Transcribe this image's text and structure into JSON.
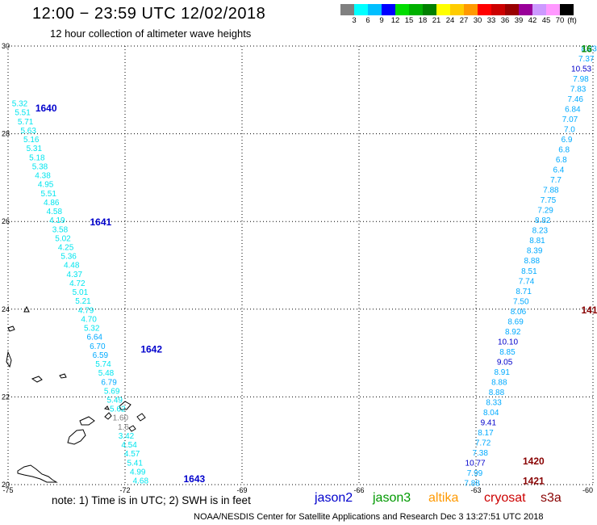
{
  "header": {
    "title": "12:00 − 23:59 UTC 12/02/2018",
    "subtitle": "12 hour collection of altimeter wave heights"
  },
  "color_scale": {
    "labels": [
      "3",
      "6",
      "9",
      "12",
      "15",
      "18",
      "21",
      "24",
      "27",
      "30",
      "33",
      "36",
      "39",
      "42",
      "45",
      "70"
    ],
    "unit": "(ft)",
    "colors": [
      "#808080",
      "#00ffff",
      "#00bfff",
      "#0000ff",
      "#00dd00",
      "#00b000",
      "#008000",
      "#ffff00",
      "#ffcc00",
      "#ff9900",
      "#ff0000",
      "#cc0000",
      "#990000",
      "#990099",
      "#cc99ff",
      "#ff99ff",
      "#000000"
    ]
  },
  "footer": {
    "note": "note:  1) Time is in UTC;  2) SWH is in feet",
    "credit": "NOAA/NESDIS Center for Satellite Applications and Research    Dec  3 13:27:51 UTC 2018",
    "missions": [
      {
        "label": "jason2",
        "color": "#0000cc"
      },
      {
        "label": "jason3",
        "color": "#009900"
      },
      {
        "label": "altika",
        "color": "#ff9900"
      },
      {
        "label": "cryosat",
        "color": "#cc0000"
      },
      {
        "label": "s3a",
        "color": "#880000"
      }
    ]
  },
  "chart_data": {
    "type": "scatter",
    "title": "12:00 − 23:59 UTC 12/02/2018",
    "subtitle": "12 hour collection of altimeter wave heights",
    "xlim": [
      -75,
      -60
    ],
    "ylim": [
      20,
      30
    ],
    "x_ticks": [
      "-75",
      "-72",
      "-69",
      "-66",
      "-63",
      "-60"
    ],
    "y_ticks": [
      "30",
      "28",
      "26",
      "24",
      "22",
      "20"
    ],
    "grid": true,
    "value_colors": {
      "le6": "#00e5ee",
      "le9": "#00aaff",
      "gt9": "#0000cc"
    },
    "track_west": {
      "values": [
        "5.32",
        "5.51",
        "5.71",
        "5.63",
        "5.16",
        "5.31",
        "5.18",
        "5.38",
        "4.38",
        "4.95",
        "5.51",
        "4.86",
        "4.58",
        "4.19",
        "3.58",
        "5.02",
        "4.25",
        "5.36",
        "4.48",
        "4.37",
        "4.72",
        "5.01",
        "5.21",
        "4.79",
        "4.70",
        "5.32",
        "6.64",
        "6.70",
        "6.59",
        "5.74",
        "5.48",
        "6.79",
        "5.69",
        "5.49",
        "5.62",
        "1.60",
        "1.6",
        "3.42",
        "4.54",
        "4.57",
        "5.41",
        "4.99",
        "4.68"
      ],
      "lat_start": 28.7,
      "lat_end": 20.1,
      "lon_start": -74.7,
      "lon_end": -71.6
    },
    "track_east": {
      "values": [
        "8.23",
        "7.37",
        "10.53",
        "7.98",
        "7.83",
        "7.46",
        "6.84",
        "7.07",
        "7.0",
        "6.9",
        "6.8",
        "6.8",
        "6.4",
        "7.7",
        "7.88",
        "7.75",
        "7.29",
        "8.82",
        "8.23",
        "8.81",
        "8.39",
        "8.88",
        "8.51",
        "7.74",
        "8.71",
        "7.50",
        "8.06",
        "8.69",
        "8.92",
        "10.10",
        "8.85",
        "9.05",
        "8.91",
        "8.88",
        "8.88",
        "8.33",
        "8.04",
        "9.41",
        "8.17",
        "7.72",
        "7.38",
        "10.77",
        "7.99",
        "7.88"
      ],
      "lat_start": 29.95,
      "lat_end": 20.05,
      "lon_start": -59.9,
      "lon_end": -62.9
    },
    "pass_labels": [
      {
        "text": "1640",
        "lon": -74.3,
        "lat": 28.6,
        "color": "#0000cc"
      },
      {
        "text": "1641",
        "lon": -72.9,
        "lat": 26.0,
        "color": "#0000cc"
      },
      {
        "text": "1642",
        "lon": -71.6,
        "lat": 23.1,
        "color": "#0000cc"
      },
      {
        "text": "1643",
        "lon": -70.5,
        "lat": 20.15,
        "color": "#0000cc"
      },
      {
        "text": "16",
        "lon": -60.3,
        "lat": 29.95,
        "color": "#008800"
      },
      {
        "text": "141",
        "lon": -60.3,
        "lat": 24.0,
        "color": "#880000"
      },
      {
        "text": "1420",
        "lon": -61.8,
        "lat": 20.55,
        "color": "#880000"
      },
      {
        "text": "1421",
        "lon": -61.8,
        "lat": 20.1,
        "color": "#880000"
      }
    ]
  }
}
